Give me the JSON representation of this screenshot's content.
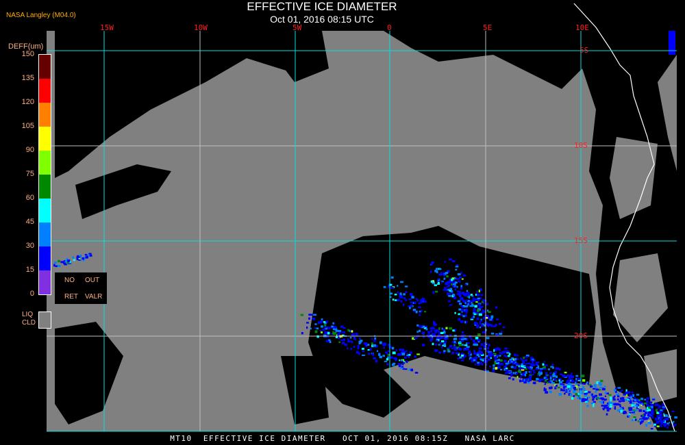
{
  "title": "EFFECTIVE ICE DIAMETER",
  "subtitle": "Oct 01, 2016 08:15 UTC",
  "credit": "NASA Langley (M04.0)",
  "footer": "MT10  EFFECTIVE ICE DIAMETER   OCT 01, 2016 08:15Z   NASA LARC",
  "longitude_labels": [
    "15W",
    "10W",
    "5W",
    "0",
    "5E",
    "10E"
  ],
  "latitude_labels": [
    "5S",
    "10S",
    "15S",
    "20S"
  ],
  "legend": {
    "title": "DEFF(um)",
    "ticks": [
      "150",
      "135",
      "120",
      "105",
      "90",
      "75",
      "60",
      "45",
      "30",
      "15",
      "0"
    ],
    "colors": [
      "#660000",
      "#ff0000",
      "#ff8000",
      "#ffff00",
      "#80ff00",
      "#008800",
      "#00ffff",
      "#0080ff",
      "#0000ff",
      "#8030e0"
    ],
    "no_ret": "NO",
    "ret": "RET",
    "out": "OUT",
    "valr": "VALR",
    "liq": "LIQ",
    "cld": "CLD"
  },
  "colors": {
    "liquid_cloud": "#808080",
    "clear": "#000000",
    "grid": "#00e0e0",
    "coastline": "#ffffff",
    "labels": "#ff2020"
  }
}
